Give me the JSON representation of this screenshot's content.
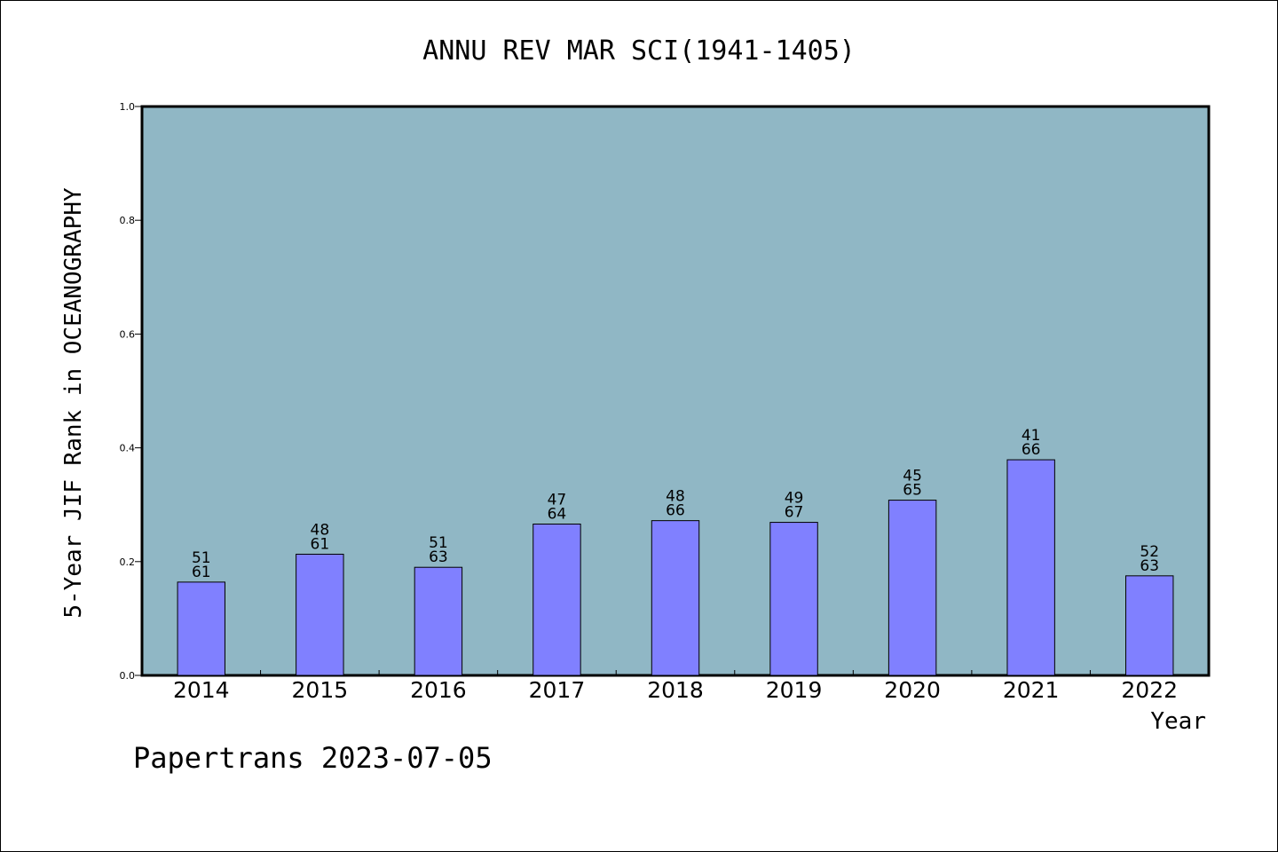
{
  "chart_data": {
    "type": "bar",
    "title": "ANNU REV MAR SCI(1941-1405)",
    "xlabel": "Year",
    "ylabel": "5-Year JIF Rank in OCEANOGRAPHY",
    "footer": "Papertrans 2023-07-05",
    "ylim": [
      0,
      1.0
    ],
    "yticks": [
      "0.0",
      "0.2",
      "0.4",
      "0.6",
      "0.8",
      "1.0"
    ],
    "grid": false,
    "categories": [
      "2014",
      "2015",
      "2016",
      "2017",
      "2018",
      "2019",
      "2020",
      "2021",
      "2022"
    ],
    "values": [
      0.164,
      0.213,
      0.19,
      0.266,
      0.272,
      0.269,
      0.308,
      0.379,
      0.175
    ],
    "labels_top": [
      "51",
      "48",
      "51",
      "47",
      "48",
      "49",
      "45",
      "41",
      "52"
    ],
    "labels_bottom": [
      "61",
      "61",
      "63",
      "64",
      "66",
      "67",
      "65",
      "66",
      "63"
    ],
    "colors": {
      "plot_background": "#90b7c5",
      "bar_fill": "#8080ff",
      "bar_stroke": "#000000"
    }
  }
}
